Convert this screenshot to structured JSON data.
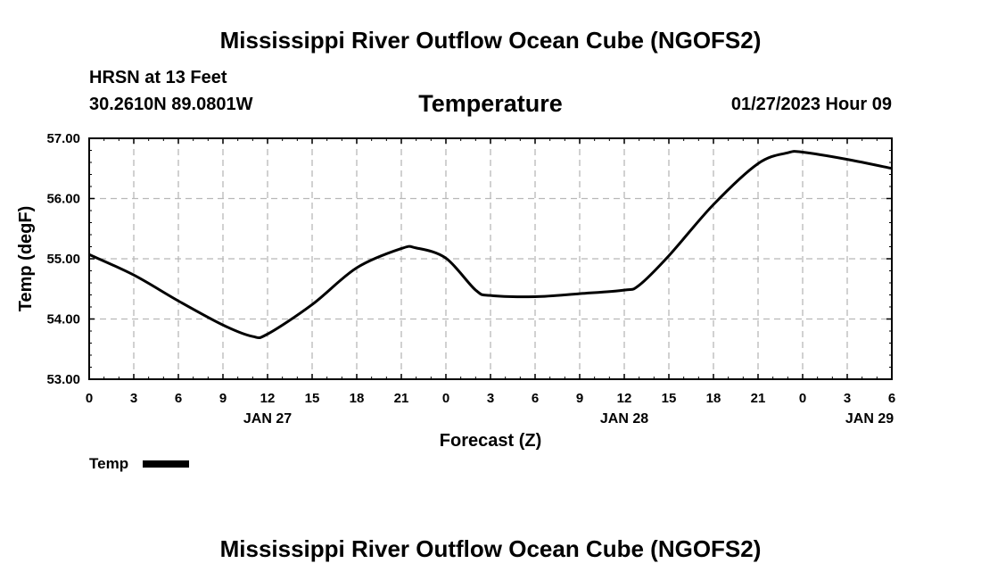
{
  "header": {
    "title_top": "Mississippi River Outflow Ocean Cube (NGOFS2)",
    "station": "HRSN at 13 Feet",
    "coords": "30.2610N  89.0801W",
    "date": "01/27/2023 Hour 09",
    "title_bottom": "Mississippi River Outflow Ocean Cube (NGOFS2)"
  },
  "chart_data": {
    "type": "line",
    "title": "Temperature",
    "xlabel": "Forecast (Z)",
    "ylabel": "Temp (degF)",
    "xlim": [
      0,
      54
    ],
    "ylim": [
      53,
      57
    ],
    "yticks": [
      53,
      54,
      55,
      56,
      57
    ],
    "ytick_labels": [
      "53.00",
      "54.00",
      "55.00",
      "56.00",
      "57.00"
    ],
    "xticks": [
      0,
      3,
      6,
      9,
      12,
      15,
      18,
      21,
      24,
      27,
      30,
      33,
      36,
      39,
      42,
      45,
      48,
      51,
      54
    ],
    "xtick_labels": [
      "0",
      "3",
      "6",
      "9",
      "12",
      "15",
      "18",
      "21",
      "0",
      "3",
      "6",
      "9",
      "12",
      "15",
      "18",
      "21",
      "0",
      "3",
      "6"
    ],
    "day_labels": [
      {
        "x": 12,
        "label": "JAN 27"
      },
      {
        "x": 36,
        "label": "JAN 28"
      },
      {
        "x": 52.5,
        "label": "JAN 29"
      }
    ],
    "grid": true,
    "legend": "bottom-left",
    "series": [
      {
        "name": "Temp",
        "color": "#000000",
        "x": [
          0,
          3,
          6,
          9,
          11,
          12,
          15,
          18,
          21,
          22,
          24,
          26,
          27,
          30,
          33,
          36,
          37,
          39,
          42,
          45,
          47,
          48,
          51,
          54
        ],
        "values": [
          55.07,
          54.73,
          54.3,
          53.9,
          53.71,
          53.75,
          54.24,
          54.85,
          55.17,
          55.18,
          55.01,
          54.48,
          54.39,
          54.37,
          54.42,
          54.48,
          54.56,
          55.05,
          55.9,
          56.58,
          56.76,
          56.77,
          56.65,
          56.5
        ]
      }
    ]
  }
}
